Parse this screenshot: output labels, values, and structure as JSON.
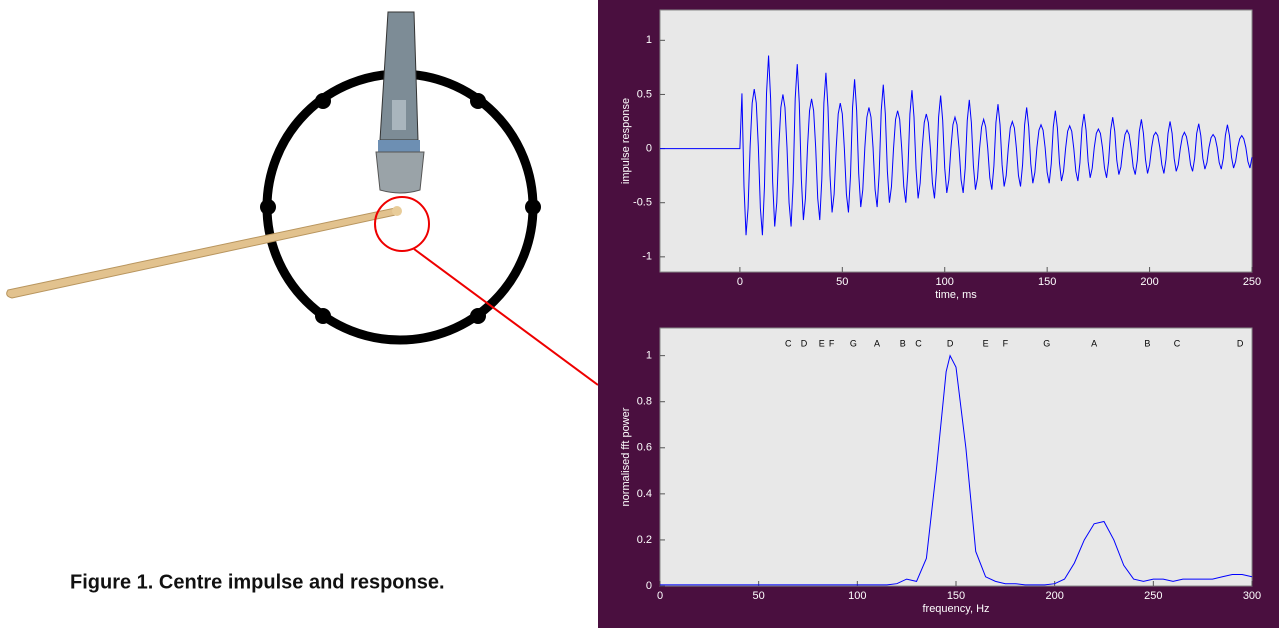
{
  "caption": "Figure 1. Centre impulse and response.",
  "chart_data": [
    {
      "type": "line",
      "ylabel": "impulse response",
      "xlabel": "time, ms",
      "color": "#0000ff",
      "xlim": [
        -39,
        250
      ],
      "ylim": [
        -1.14,
        1.28
      ],
      "xticks": [
        0,
        50,
        100,
        150,
        200,
        250
      ],
      "yticks": [
        -1,
        -0.5,
        0,
        0.5,
        1
      ],
      "x": [
        -39,
        0,
        1,
        2,
        3,
        4,
        5,
        6,
        7,
        8,
        9,
        10,
        11,
        12,
        13,
        14,
        15,
        16,
        17,
        18,
        19,
        20,
        21,
        22,
        23,
        24,
        25,
        26,
        27,
        28,
        29,
        30,
        31,
        32,
        33,
        34,
        35,
        36,
        37,
        38,
        39,
        40,
        41,
        42,
        43,
        44,
        45,
        46,
        47,
        48,
        49,
        50,
        51,
        52,
        53,
        54,
        55,
        56,
        57,
        58,
        59,
        60,
        61,
        62,
        63,
        64,
        65,
        66,
        67,
        68,
        69,
        70,
        71,
        72,
        73,
        74,
        75,
        76,
        77,
        78,
        79,
        80,
        81,
        82,
        83,
        84,
        85,
        86,
        87,
        88,
        89,
        90,
        91,
        92,
        93,
        94,
        95,
        96,
        97,
        98,
        99,
        100,
        101,
        102,
        103,
        104,
        105,
        106,
        107,
        108,
        109,
        110,
        111,
        112,
        113,
        114,
        115,
        116,
        117,
        118,
        119,
        120,
        121,
        122,
        123,
        124,
        125,
        126,
        127,
        128,
        129,
        130,
        131,
        132,
        133,
        134,
        135,
        136,
        137,
        138,
        139,
        140,
        141,
        142,
        143,
        144,
        145,
        146,
        147,
        148,
        149,
        150,
        151,
        152,
        153,
        154,
        155,
        156,
        157,
        158,
        159,
        160,
        161,
        162,
        163,
        164,
        165,
        166,
        167,
        168,
        169,
        170,
        171,
        172,
        173,
        174,
        175,
        176,
        177,
        178,
        179,
        180,
        181,
        182,
        183,
        184,
        185,
        186,
        187,
        188,
        189,
        190,
        191,
        192,
        193,
        194,
        195,
        196,
        197,
        198,
        199,
        200,
        201,
        202,
        203,
        204,
        205,
        206,
        207,
        208,
        209,
        210,
        211,
        212,
        213,
        214,
        215,
        216,
        217,
        218,
        219,
        220,
        221,
        222,
        223,
        224,
        225,
        226,
        227,
        228,
        229,
        230,
        231,
        232,
        233,
        234,
        235,
        236,
        237,
        238,
        239,
        240,
        241,
        242,
        243,
        244,
        245,
        246,
        247,
        248,
        249,
        250
      ],
      "values": [
        0,
        0,
        0.51,
        -0.35,
        -0.8,
        -0.55,
        0.02,
        0.42,
        0.55,
        0.42,
        0.02,
        -0.55,
        -0.8,
        -0.35,
        0.51,
        0.86,
        0.46,
        -0.31,
        -0.72,
        -0.5,
        0.01,
        0.38,
        0.5,
        0.38,
        0.01,
        -0.5,
        -0.72,
        -0.31,
        0.46,
        0.78,
        0.42,
        -0.28,
        -0.66,
        -0.46,
        0.01,
        0.35,
        0.46,
        0.35,
        0.01,
        -0.46,
        -0.66,
        -0.28,
        0.42,
        0.7,
        0.38,
        -0.25,
        -0.59,
        -0.42,
        0,
        0.32,
        0.42,
        0.32,
        0,
        -0.42,
        -0.59,
        -0.25,
        0.38,
        0.64,
        0.35,
        -0.23,
        -0.54,
        -0.38,
        0.01,
        0.29,
        0.38,
        0.29,
        0.01,
        -0.38,
        -0.54,
        -0.23,
        0.35,
        0.59,
        0.32,
        -0.21,
        -0.5,
        -0.35,
        0,
        0.27,
        0.35,
        0.27,
        0,
        -0.35,
        -0.5,
        -0.21,
        0.32,
        0.54,
        0.29,
        -0.19,
        -0.46,
        -0.32,
        0,
        0.24,
        0.32,
        0.24,
        0,
        -0.32,
        -0.46,
        -0.19,
        0.29,
        0.49,
        0.26,
        -0.18,
        -0.41,
        -0.29,
        0,
        0.22,
        0.29,
        0.22,
        0,
        -0.29,
        -0.41,
        -0.18,
        0.26,
        0.45,
        0.24,
        -0.16,
        -0.38,
        -0.27,
        0,
        0.2,
        0.27,
        0.2,
        0,
        -0.27,
        -0.38,
        -0.16,
        0.24,
        0.41,
        0.22,
        -0.15,
        -0.35,
        -0.25,
        0,
        0.19,
        0.25,
        0.19,
        0,
        -0.25,
        -0.35,
        -0.15,
        0.22,
        0.38,
        0.2,
        -0.14,
        -0.32,
        -0.22,
        0.01,
        0.17,
        0.22,
        0.17,
        0.01,
        -0.22,
        -0.32,
        -0.14,
        0.2,
        0.35,
        0.19,
        -0.13,
        -0.3,
        -0.21,
        0,
        0.16,
        0.21,
        0.16,
        0,
        -0.21,
        -0.3,
        -0.13,
        0.19,
        0.32,
        0.17,
        -0.12,
        -0.27,
        -0.18,
        0.01,
        0.14,
        0.18,
        0.14,
        0.01,
        -0.18,
        -0.27,
        -0.12,
        0.17,
        0.29,
        0.16,
        -0.11,
        -0.24,
        -0.17,
        0,
        0.13,
        0.17,
        0.13,
        0,
        -0.17,
        -0.24,
        -0.11,
        0.16,
        0.27,
        0.14,
        -0.1,
        -0.23,
        -0.15,
        0.01,
        0.12,
        0.15,
        0.12,
        0.01,
        -0.15,
        -0.23,
        -0.1,
        0.14,
        0.25,
        0.14,
        -0.09,
        -0.21,
        -0.15,
        0,
        0.11,
        0.15,
        0.11,
        0,
        -0.15,
        -0.21,
        -0.09,
        0.14,
        0.23,
        0.12,
        -0.09,
        -0.19,
        -0.13,
        0.01,
        0.1,
        0.13,
        0.1,
        0.01,
        -0.13,
        -0.19,
        -0.09,
        0.12,
        0.22,
        0.12,
        -0.08,
        -0.18,
        -0.12,
        0.01,
        0.09,
        0.12,
        0.09,
        0.01,
        -0.12,
        -0.18,
        -0.08
      ]
    },
    {
      "type": "line",
      "ylabel": "normalised fft power",
      "xlabel": "frequency, Hz",
      "color": "#0000ff",
      "xlim": [
        0,
        300
      ],
      "ylim": [
        0,
        1.12
      ],
      "xticks": [
        0,
        50,
        100,
        150,
        200,
        250,
        300
      ],
      "yticks": [
        0,
        0.2,
        0.4,
        0.6,
        0.8,
        1
      ],
      "x": [
        0,
        10,
        20,
        30,
        40,
        50,
        60,
        70,
        80,
        90,
        100,
        110,
        115,
        120,
        125,
        130,
        135,
        140,
        145,
        147,
        150,
        155,
        160,
        165,
        170,
        175,
        180,
        185,
        190,
        195,
        200,
        205,
        210,
        215,
        220,
        225,
        230,
        235,
        240,
        245,
        250,
        255,
        260,
        265,
        270,
        275,
        280,
        285,
        290,
        295,
        300
      ],
      "values": [
        0.005,
        0.005,
        0.005,
        0.005,
        0.005,
        0.005,
        0.005,
        0.005,
        0.005,
        0.005,
        0.005,
        0.005,
        0.005,
        0.01,
        0.03,
        0.02,
        0.12,
        0.5,
        0.93,
        1,
        0.95,
        0.6,
        0.15,
        0.04,
        0.02,
        0.01,
        0.01,
        0.005,
        0.005,
        0.005,
        0.01,
        0.03,
        0.1,
        0.2,
        0.27,
        0.28,
        0.2,
        0.09,
        0.03,
        0.02,
        0.03,
        0.03,
        0.02,
        0.03,
        0.03,
        0.03,
        0.03,
        0.04,
        0.05,
        0.05,
        0.04
      ],
      "note_labels": {
        "x": [
          65,
          73,
          82,
          87,
          98,
          110,
          123,
          131,
          147,
          165,
          175,
          196,
          220,
          247,
          262,
          294
        ],
        "labels": [
          "C",
          "D",
          "E",
          "F",
          "G",
          "A",
          "B",
          "C",
          "D",
          "E",
          "F",
          "G",
          "A",
          "B",
          "C",
          "D"
        ]
      }
    }
  ]
}
